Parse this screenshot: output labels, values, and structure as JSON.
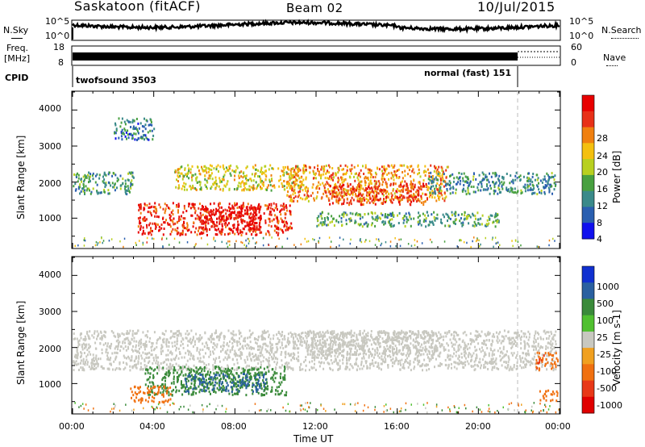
{
  "header": {
    "station": "Saskatoon (fitACF)",
    "beam": "Beam 02",
    "date": "10/Jul/2015"
  },
  "top_panel_labels": {
    "nsky": "N.Sky",
    "nsearch": "N.Search",
    "freq_line1": "Freq.",
    "freq_line2": "[MHz]",
    "nave": "Nave",
    "cpid": "CPID",
    "noise_ticks_left": [
      "10^5",
      "10^0"
    ],
    "noise_ticks_right": [
      "10^5",
      "10^0"
    ],
    "freq_ticks": [
      "18",
      "8"
    ],
    "nave_ticks": [
      "60",
      "0"
    ],
    "cpid_left": "twofsound 3503",
    "cpid_right": "normal (fast) 151"
  },
  "chart_data": [
    {
      "type": "heatmap",
      "panel": "power",
      "ylabel": "Slant Range [km]",
      "ylim": [
        180,
        4500
      ],
      "y_ticks": [
        "1000",
        "2000",
        "3000",
        "4000"
      ],
      "colorbar_label": "Power [dB]",
      "colorbar_ticks": [
        "4",
        "8",
        "12",
        "16",
        "20",
        "24",
        "28"
      ],
      "colors": [
        "#1010ee",
        "#2a5fb0",
        "#3a8a8a",
        "#48a040",
        "#b8d020",
        "#f4c010",
        "#f08010",
        "#e83018",
        "#e80000"
      ],
      "regions": [
        {
          "t": [
            3.2,
            10.8
          ],
          "r": [
            560,
            1450
          ],
          "level": 26
        },
        {
          "t": [
            6.2,
            9.3
          ],
          "r": [
            700,
            1350
          ],
          "level": 29
        },
        {
          "t": [
            0.0,
            3.0
          ],
          "r": [
            1700,
            2300
          ],
          "level": 10
        },
        {
          "t": [
            5.0,
            11.5
          ],
          "r": [
            1800,
            2500
          ],
          "level": 17
        },
        {
          "t": [
            10.5,
            18.5
          ],
          "r": [
            1500,
            2500
          ],
          "level": 21
        },
        {
          "t": [
            12.5,
            17.5
          ],
          "r": [
            1400,
            2000
          ],
          "level": 25
        },
        {
          "t": [
            17.5,
            23.8
          ],
          "r": [
            1700,
            2300
          ],
          "level": 9
        },
        {
          "t": [
            12.0,
            21.0
          ],
          "r": [
            800,
            1200
          ],
          "level": 11
        },
        {
          "t": [
            2.0,
            4.0
          ],
          "r": [
            3200,
            3800
          ],
          "level": 8
        }
      ]
    },
    {
      "type": "heatmap",
      "panel": "velocity",
      "ylabel": "Slant Range [km]",
      "ylim": [
        180,
        4500
      ],
      "y_ticks": [
        "1000",
        "2000",
        "3000",
        "4000"
      ],
      "xlabel": "Time UT",
      "x_ticks": [
        "00:00",
        "04:00",
        "08:00",
        "12:00",
        "16:00",
        "20:00",
        "00:00"
      ],
      "xlim": [
        0,
        24
      ],
      "colorbar_label": "Velocity [m s-1]",
      "colorbar_ticks": [
        "1000",
        "500",
        "100",
        "25",
        "-25",
        "-100",
        "-500",
        "-1000"
      ],
      "colors": [
        "#1030d0",
        "#2a60a0",
        "#3a8a3a",
        "#50c030",
        "#c8c8c0",
        "#f0a020",
        "#f07010",
        "#e83818",
        "#e00000"
      ],
      "regions": [
        {
          "t": [
            0.0,
            23.8
          ],
          "r": [
            1400,
            2500
          ],
          "level": 0
        },
        {
          "t": [
            11.5,
            18.0
          ],
          "r": [
            1800,
            2500
          ],
          "level": 0
        },
        {
          "t": [
            3.5,
            10.5
          ],
          "r": [
            700,
            1500
          ],
          "level": 200
        },
        {
          "t": [
            5.5,
            9.5
          ],
          "r": [
            800,
            1300
          ],
          "level": 600
        },
        {
          "t": [
            2.8,
            4.8
          ],
          "r": [
            500,
            950
          ],
          "level": -200
        },
        {
          "t": [
            22.8,
            23.9
          ],
          "r": [
            1400,
            1900
          ],
          "level": -400
        },
        {
          "t": [
            23.0,
            23.9
          ],
          "r": [
            550,
            850
          ],
          "level": -200
        }
      ]
    }
  ],
  "bottom_axis": {
    "xlabel": "Time UT",
    "ticks": [
      "00:00",
      "04:00",
      "08:00",
      "12:00",
      "16:00",
      "20:00",
      "00:00"
    ]
  }
}
